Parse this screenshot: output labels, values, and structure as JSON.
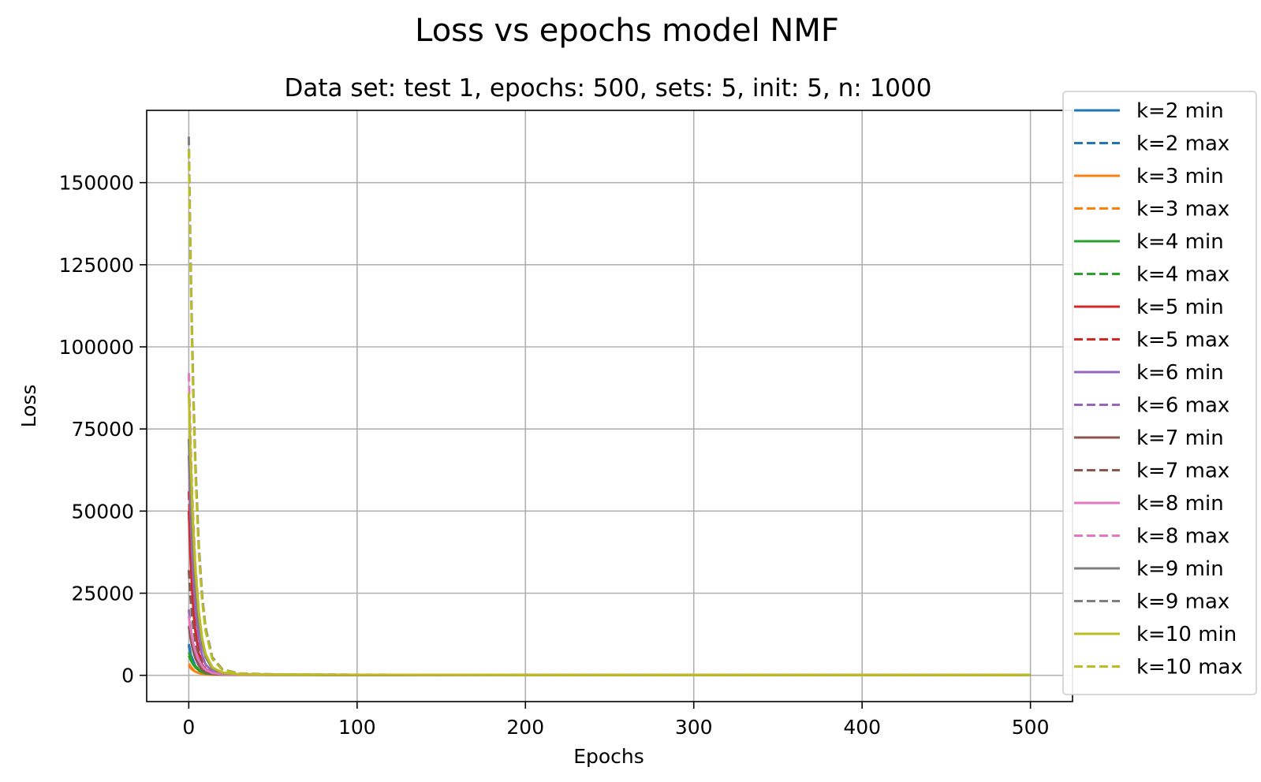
{
  "chart_data": {
    "type": "line",
    "title": "Loss vs epochs model NMF",
    "subtitle": "Data set: test 1, epochs: 500, sets: 5, init: 5, n: 1000",
    "xlabel": "Epochs",
    "ylabel": "Loss",
    "xlim": [
      -25,
      525
    ],
    "ylim": [
      -8000,
      172000
    ],
    "xticks": [
      0,
      100,
      200,
      300,
      400,
      500
    ],
    "xtick_labels": [
      "0",
      "100",
      "200",
      "300",
      "400",
      "500"
    ],
    "yticks": [
      0,
      25000,
      50000,
      75000,
      100000,
      125000,
      150000
    ],
    "ytick_labels": [
      "0",
      "25000",
      "50000",
      "75000",
      "100000",
      "125000",
      "150000"
    ],
    "grid": true,
    "legend_position": "right, outside plot area",
    "x_points": [
      0,
      1,
      2,
      3,
      4,
      6,
      8,
      10,
      14,
      20,
      30,
      50,
      100,
      200,
      300,
      400,
      500
    ],
    "series": [
      {
        "name": "k=2 min",
        "color": "#1f77b4",
        "dashed": false,
        "values": [
          9000,
          6700,
          5000,
          3700,
          2800,
          1600,
          900,
          550,
          300,
          200,
          160,
          140,
          120,
          100,
          90,
          85,
          80
        ]
      },
      {
        "name": "k=2 max",
        "color": "#1f77b4",
        "dashed": true,
        "values": [
          9500,
          7100,
          5300,
          4000,
          3000,
          1700,
          1000,
          600,
          330,
          220,
          170,
          150,
          125,
          105,
          95,
          88,
          82
        ]
      },
      {
        "name": "k=3 min",
        "color": "#ff7f0e",
        "dashed": false,
        "values": [
          3000,
          2300,
          1800,
          1400,
          1100,
          700,
          450,
          300,
          200,
          160,
          140,
          130,
          120,
          100,
          90,
          85,
          80
        ]
      },
      {
        "name": "k=3 max",
        "color": "#ff7f0e",
        "dashed": true,
        "values": [
          3500,
          2700,
          2100,
          1600,
          1250,
          800,
          500,
          330,
          220,
          170,
          150,
          135,
          122,
          102,
          92,
          86,
          81
        ]
      },
      {
        "name": "k=4 min",
        "color": "#2ca02c",
        "dashed": false,
        "values": [
          6000,
          4800,
          3800,
          3000,
          2400,
          1500,
          950,
          600,
          320,
          200,
          160,
          140,
          120,
          100,
          90,
          85,
          80
        ]
      },
      {
        "name": "k=4 max",
        "color": "#2ca02c",
        "dashed": true,
        "values": [
          7000,
          5600,
          4400,
          3500,
          2800,
          1750,
          1100,
          700,
          360,
          220,
          170,
          150,
          125,
          105,
          95,
          88,
          82
        ]
      },
      {
        "name": "k=5 min",
        "color": "#d62728",
        "dashed": false,
        "values": [
          50000,
          36000,
          26000,
          18000,
          13000,
          6500,
          3300,
          1700,
          600,
          300,
          200,
          160,
          130,
          105,
          95,
          88,
          82
        ]
      },
      {
        "name": "k=5 max",
        "color": "#d62728",
        "dashed": true,
        "values": [
          56000,
          41000,
          29000,
          21000,
          15000,
          7500,
          3800,
          1900,
          700,
          330,
          210,
          170,
          135,
          110,
          98,
          90,
          84
        ]
      },
      {
        "name": "k=6 min",
        "color": "#9467bd",
        "dashed": false,
        "values": [
          67000,
          50000,
          37000,
          27000,
          20000,
          11000,
          6000,
          3300,
          1200,
          450,
          250,
          180,
          140,
          110,
          98,
          90,
          84
        ]
      },
      {
        "name": "k=6 max",
        "color": "#9467bd",
        "dashed": true,
        "values": [
          20000,
          15000,
          11000,
          8500,
          6400,
          3600,
          2000,
          1100,
          450,
          250,
          180,
          150,
          130,
          108,
          96,
          89,
          83
        ]
      },
      {
        "name": "k=7 min",
        "color": "#8c564b",
        "dashed": false,
        "values": [
          15000,
          11500,
          8800,
          6700,
          5100,
          3000,
          1700,
          1000,
          400,
          230,
          170,
          150,
          128,
          106,
          95,
          88,
          82
        ]
      },
      {
        "name": "k=7 max",
        "color": "#8c564b",
        "dashed": true,
        "values": [
          32000,
          24000,
          18000,
          13500,
          10000,
          5700,
          3200,
          1800,
          650,
          300,
          200,
          160,
          132,
          108,
          96,
          89,
          83
        ]
      },
      {
        "name": "k=8 min",
        "color": "#e377c2",
        "dashed": false,
        "values": [
          18000,
          14500,
          11500,
          9000,
          7200,
          4500,
          2800,
          1700,
          700,
          320,
          210,
          170,
          135,
          110,
          98,
          90,
          84
        ]
      },
      {
        "name": "k=8 max",
        "color": "#e377c2",
        "dashed": true,
        "values": [
          92000,
          72000,
          56000,
          43000,
          33000,
          19000,
          11000,
          6500,
          2400,
          800,
          350,
          220,
          155,
          118,
          102,
          93,
          86
        ]
      },
      {
        "name": "k=9 min",
        "color": "#7f7f7f",
        "dashed": false,
        "values": [
          72000,
          57000,
          45000,
          35000,
          27000,
          16000,
          9500,
          5500,
          2000,
          700,
          320,
          210,
          150,
          115,
          100,
          92,
          85
        ]
      },
      {
        "name": "k=9 max",
        "color": "#7f7f7f",
        "dashed": true,
        "values": [
          164000,
          130000,
          103000,
          81000,
          64000,
          39000,
          24000,
          14500,
          5500,
          1800,
          600,
          300,
          180,
          125,
          106,
          95,
          88
        ]
      },
      {
        "name": "k=10 min",
        "color": "#bcbd22",
        "dashed": false,
        "values": [
          86000,
          68000,
          53000,
          41000,
          32000,
          19000,
          11000,
          6500,
          2400,
          800,
          350,
          230,
          160,
          120,
          103,
          94,
          87
        ]
      },
      {
        "name": "k=10 max",
        "color": "#bcbd22",
        "dashed": true,
        "values": [
          160000,
          126000,
          99000,
          78000,
          61000,
          37000,
          22500,
          13500,
          5000,
          1600,
          550,
          280,
          170,
          122,
          105,
          95,
          88
        ]
      }
    ]
  }
}
